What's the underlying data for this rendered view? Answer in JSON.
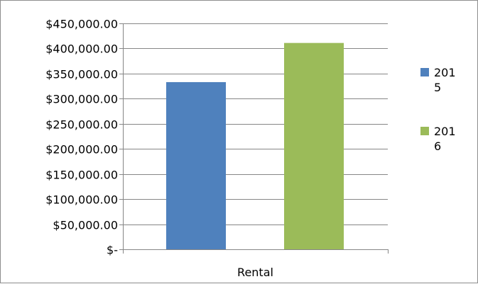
{
  "chart_data": {
    "type": "bar",
    "categories": [
      "Rental"
    ],
    "series": [
      {
        "name": "2015",
        "values": [
          333000
        ],
        "color": "#4f81bd"
      },
      {
        "name": "2016",
        "values": [
          411000
        ],
        "color": "#9bbb59"
      }
    ],
    "ylim": [
      0,
      450000
    ],
    "y_ticks": [
      0,
      50000,
      100000,
      150000,
      200000,
      250000,
      300000,
      350000,
      400000,
      450000
    ],
    "y_tick_labels": [
      "$-",
      "$50,000.00",
      "$100,000.00",
      "$150,000.00",
      "$200,000.00",
      "$250,000.00",
      "$300,000.00",
      "$350,000.00",
      "$400,000.00",
      "$450,000.00"
    ],
    "legend_position": "right",
    "legend_lines": [
      [
        "201",
        "5"
      ],
      [
        "201",
        "6"
      ]
    ],
    "grid": true,
    "gridline_color": "#868686"
  }
}
